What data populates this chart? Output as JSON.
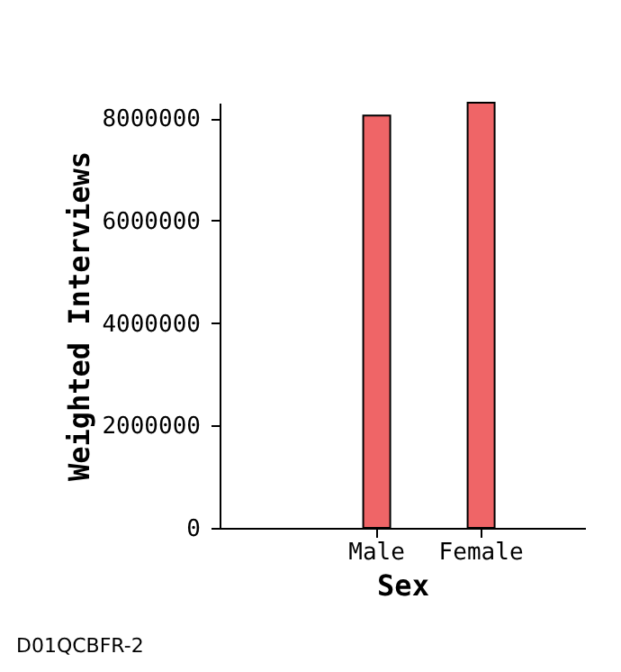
{
  "chart_data": {
    "type": "bar",
    "xlabel": "Sex",
    "ylabel": "Weighted Interviews",
    "categories": [
      "Male",
      "Female"
    ],
    "values": [
      8050000,
      8300000
    ],
    "color": "#ef6567",
    "ylim": [
      0,
      8300000
    ],
    "yticks": [
      0,
      2000000,
      4000000,
      6000000,
      8000000
    ],
    "grid": false,
    "annotations": [
      "D01QCBFR-2"
    ]
  }
}
